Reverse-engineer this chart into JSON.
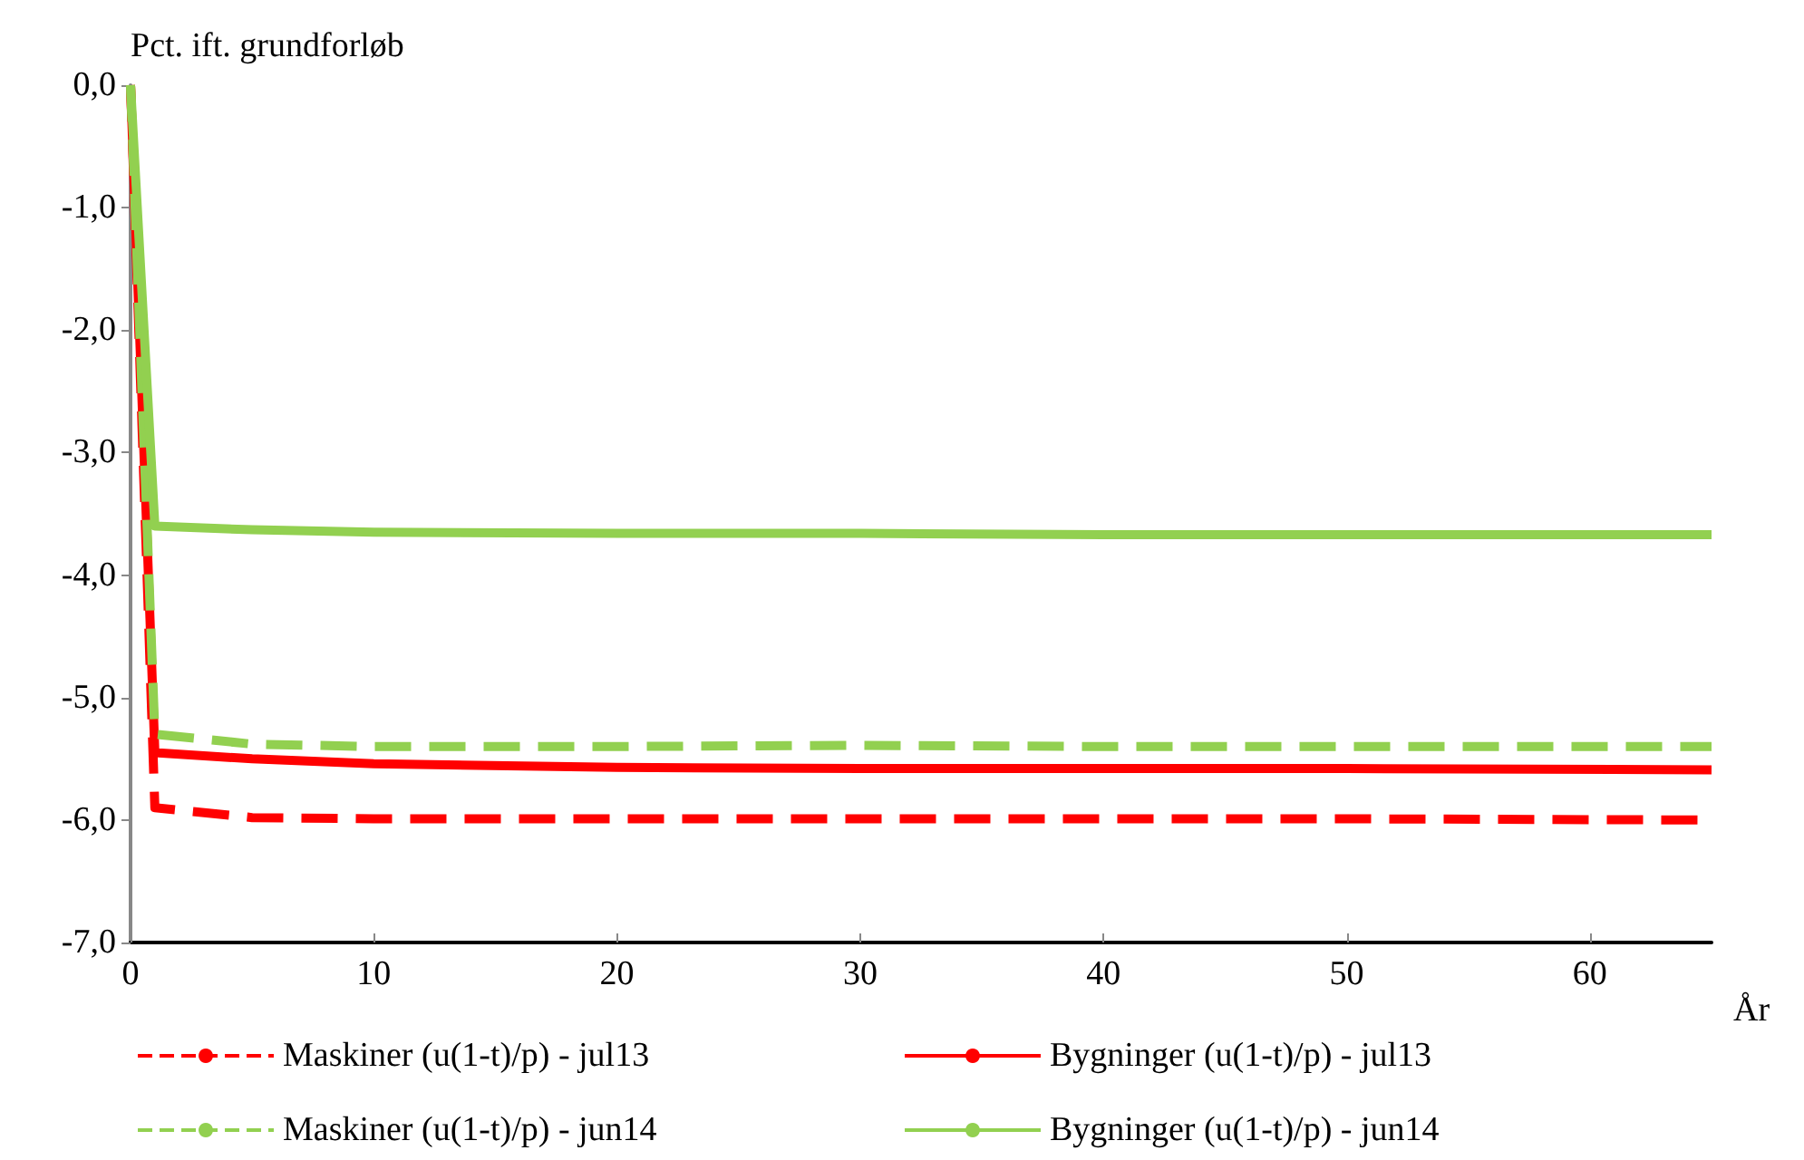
{
  "chart_data": {
    "type": "line",
    "ylabel": "Pct. ift. grundforløb",
    "xlabel": "År",
    "xlim": [
      0,
      65
    ],
    "xticks": [
      0,
      10,
      20,
      30,
      40,
      50,
      60
    ],
    "ylim": [
      -7,
      0
    ],
    "yticks": [
      {
        "value": 0,
        "label": "0,0"
      },
      {
        "value": -1,
        "label": "-1,0"
      },
      {
        "value": -2,
        "label": "-2,0"
      },
      {
        "value": -3,
        "label": "-3,0"
      },
      {
        "value": -4,
        "label": "-4,0"
      },
      {
        "value": -5,
        "label": "-5,0"
      },
      {
        "value": -6,
        "label": "-6,0"
      },
      {
        "value": -7,
        "label": "-7,0"
      }
    ],
    "grid": false,
    "legend": "bottom",
    "marker": "none",
    "series": [
      {
        "name": "Maskiner (u(1-t)/p) - jul13",
        "color": "#ff0000",
        "line_style": "dashed",
        "x": [
          0,
          1,
          5,
          10,
          20,
          30,
          40,
          50,
          65
        ],
        "values": [
          0,
          -5.9,
          -5.98,
          -5.99,
          -5.99,
          -5.99,
          -5.99,
          -5.99,
          -6.0
        ]
      },
      {
        "name": "Bygninger (u(1-t)/p) - jul13",
        "color": "#ff0000",
        "line_style": "solid",
        "x": [
          0,
          1,
          5,
          10,
          20,
          30,
          40,
          50,
          65
        ],
        "values": [
          0,
          -5.45,
          -5.5,
          -5.54,
          -5.57,
          -5.58,
          -5.58,
          -5.58,
          -5.59
        ]
      },
      {
        "name": "Maskiner (u(1-t)/p) - jun14",
        "color": "#92d050",
        "line_style": "dashed",
        "x": [
          0,
          1,
          5,
          10,
          20,
          30,
          40,
          50,
          65
        ],
        "values": [
          0,
          -5.3,
          -5.38,
          -5.4,
          -5.4,
          -5.39,
          -5.4,
          -5.4,
          -5.4
        ]
      },
      {
        "name": "Bygninger (u(1-t)/p) - jun14",
        "color": "#92d050",
        "line_style": "solid",
        "x": [
          0,
          1,
          5,
          10,
          20,
          30,
          40,
          50,
          65
        ],
        "values": [
          0,
          -3.6,
          -3.63,
          -3.65,
          -3.66,
          -3.66,
          -3.67,
          -3.67,
          -3.67
        ]
      }
    ]
  }
}
